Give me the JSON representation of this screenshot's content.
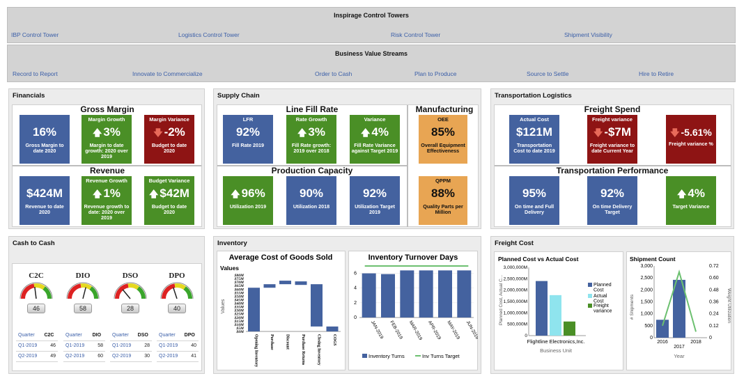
{
  "top": {
    "title": "Inspirage Control Towers",
    "links": [
      "IBP Control Tower",
      "Logistics Control Tower",
      "Risk Control Tower",
      "Shipment Visibility"
    ]
  },
  "streams": {
    "title": "Business Value Streams",
    "links": [
      "Record to Report",
      "Innovate to Commercialize",
      "Order to Cash",
      "Plan to Produce",
      "Source to Settle",
      "Hire to Retire"
    ]
  },
  "financials": {
    "title": "Financials",
    "gross_margin": {
      "title": "Gross Margin",
      "tiles": [
        {
          "header": "",
          "value": "16%",
          "caption": "Gross Margin to date 2020",
          "color": "#44629f",
          "arrow": ""
        },
        {
          "header": "Margin Growth",
          "value": "3%",
          "caption": "Margin to date growth: 2020 over 2019",
          "color": "#4a8f26",
          "arrow": "up"
        },
        {
          "header": "Margin Variance",
          "value": "-2%",
          "caption": "Budget to date 2020",
          "color": "#8e1414",
          "arrow": "down"
        }
      ]
    },
    "revenue": {
      "title": "Revenue",
      "tiles": [
        {
          "header": "",
          "value": "$424M",
          "caption": "Revenue to date 2020",
          "color": "#44629f",
          "arrow": ""
        },
        {
          "header": "Revenue Growth",
          "value": "1%",
          "caption": "Revenue growth to date: 2020 over 2019",
          "color": "#4a8f26",
          "arrow": "up"
        },
        {
          "header": "Budget Variance",
          "value": "$42M",
          "caption": "Budget to date 2020",
          "color": "#4a8f26",
          "arrow": "up"
        }
      ]
    }
  },
  "supply_chain": {
    "title": "Supply Chain",
    "line_fill": {
      "title": "Line Fill Rate",
      "tiles": [
        {
          "header": "LFR",
          "value": "92%",
          "caption": "Fill Rate 2019",
          "color": "#44629f",
          "arrow": ""
        },
        {
          "header": "Rate Growth",
          "value": "3%",
          "caption": "Fill Rate growth: 2019 over 2018",
          "color": "#4a8f26",
          "arrow": "up"
        },
        {
          "header": "Variance",
          "value": "4%",
          "caption": "Fill Rate Variance against Target 2019",
          "color": "#4a8f26",
          "arrow": "up"
        }
      ]
    },
    "manufacturing": {
      "title": "Manufacturing",
      "tiles": [
        {
          "header": "OEE",
          "value": "85%",
          "caption": "Overall Equipment Effectiveness",
          "color": "#e8a553",
          "arrow": ""
        },
        {
          "header": "QPPM",
          "value": "88%",
          "caption": "Quality Parts per Million",
          "color": "#e8a553",
          "arrow": ""
        }
      ]
    },
    "production": {
      "title": "Production Capacity",
      "tiles": [
        {
          "header": "",
          "value": "96%",
          "caption": "Utilization 2019",
          "color": "#4a8f26",
          "arrow": "up"
        },
        {
          "header": "",
          "value": "90%",
          "caption": "Utilization 2018",
          "color": "#44629f",
          "arrow": ""
        },
        {
          "header": "",
          "value": "92%",
          "caption": "Utilization Target 2019",
          "color": "#44629f",
          "arrow": ""
        }
      ]
    }
  },
  "transport": {
    "title": "Transportation Logistics",
    "freight_spend": {
      "title": "Freight Spend",
      "tiles": [
        {
          "header": "Actual Cost",
          "value": "$121M",
          "caption": "Transportation Cost to date 2019",
          "color": "#44629f",
          "arrow": ""
        },
        {
          "header": "Freight variance",
          "value": "-$7M",
          "caption": "Freight variance to date Current Year",
          "color": "#8e1414",
          "arrow": "down"
        },
        {
          "header": "",
          "value": "-5.61%",
          "caption": "Freight variance %",
          "color": "#8e1414",
          "arrow": "down"
        }
      ]
    },
    "performance": {
      "title": "Transportation Performance",
      "tiles": [
        {
          "header": "",
          "value": "95%",
          "caption": "On time and Full Delivery",
          "color": "#44629f",
          "arrow": ""
        },
        {
          "header": "",
          "value": "92%",
          "caption": "On time Delivery Target",
          "color": "#44629f",
          "arrow": ""
        },
        {
          "header": "",
          "value": "4%",
          "caption": "Target Variance",
          "color": "#4a8f26",
          "arrow": "up"
        }
      ]
    }
  },
  "cash": {
    "title": "Cash to Cash",
    "gauges": [
      {
        "name": "C2C",
        "value": "46",
        "pct": 0.46
      },
      {
        "name": "DIO",
        "value": "58",
        "pct": 0.58
      },
      {
        "name": "DSO",
        "value": "28",
        "pct": 0.28
      },
      {
        "name": "DPO",
        "value": "40",
        "pct": 0.4
      }
    ],
    "tables": [
      {
        "h1": "Quarter",
        "h2": "C2C",
        "rows": [
          [
            "Q1-2019",
            "46"
          ],
          [
            "Q2-2019",
            "49"
          ]
        ]
      },
      {
        "h1": "Quarter",
        "h2": "DIO",
        "rows": [
          [
            "Q1-2019",
            "58"
          ],
          [
            "Q2-2019",
            "60"
          ]
        ]
      },
      {
        "h1": "Quarter",
        "h2": "DSO",
        "rows": [
          [
            "Q1-2019",
            "28"
          ],
          [
            "Q2-2019",
            "30"
          ]
        ]
      },
      {
        "h1": "Quarter",
        "h2": "DPO",
        "rows": [
          [
            "Q1-2019",
            "40"
          ],
          [
            "Q2-2019",
            "41"
          ]
        ]
      }
    ]
  },
  "inventory": {
    "title": "Inventory"
  },
  "freight": {
    "title": "Freight Cost"
  },
  "chart_data": [
    {
      "type": "bar",
      "title": "Average Cost of Goods Sold",
      "legend_title": "Values",
      "ylabel": "Values",
      "ylim": [
        0,
        80
      ],
      "yticks": [
        "$0M",
        "$5M",
        "$10M",
        "$15M",
        "$20M",
        "$25M",
        "$30M",
        "$35M",
        "$40M",
        "$45M",
        "$50M",
        "$55M",
        "$60M",
        "$65M",
        "$70M",
        "$75M",
        "$80M"
      ],
      "categories": [
        "Opening Inventory",
        "Purchase",
        "Discount",
        "Purchase Returns",
        "Closing Inventory",
        "COGS"
      ],
      "waterfall_ranges": [
        [
          0,
          62
        ],
        [
          62,
          67
        ],
        [
          67,
          72
        ],
        [
          66,
          71
        ],
        [
          7,
          67
        ],
        [
          0,
          7
        ]
      ]
    },
    {
      "type": "bar",
      "title": "Inventory Turnover Days",
      "ylim": [
        0,
        7
      ],
      "yticks": [
        "0",
        "2",
        "4",
        "6"
      ],
      "categories": [
        "JAN-2019",
        "FEB-2019",
        "MAR-2019",
        "APR-2019",
        "MAY-2019",
        "JUN-2019"
      ],
      "series": [
        {
          "name": "Inventory Turns",
          "values": [
            6.0,
            5.9,
            6.4,
            6.4,
            6.4,
            6.4
          ]
        },
        {
          "name": "Inv Turns Target",
          "values": [
            7.0,
            7.0,
            7.0,
            7.0,
            7.0,
            7.0
          ]
        }
      ]
    },
    {
      "type": "bar",
      "title": "Planned Cost vs Actual Cost",
      "ylabel": "Planned Cost, Actual C...",
      "xlabel": "Business Unit",
      "ylim": [
        0,
        3000000
      ],
      "yticks": [
        "0",
        "500,000M",
        "1,000,000M",
        "1,500,000M",
        "2,000,000M",
        "2,500,000M",
        "3,000,000M"
      ],
      "categories": [
        "Flightline Electronics,Inc."
      ],
      "series": [
        {
          "name": "Planned Cost",
          "values": [
            2400000
          ]
        },
        {
          "name": "Actual Cost",
          "values": [
            1780000
          ]
        },
        {
          "name": "Freight variance",
          "values": [
            620000
          ]
        }
      ]
    },
    {
      "type": "bar",
      "title": "Shipment Count",
      "ylabel": "# Shipments",
      "y2label": "Weight Utilization",
      "xlabel": "Year",
      "ylim": [
        0,
        3000
      ],
      "y2lim": [
        0,
        0.72
      ],
      "yticks": [
        "0",
        "500",
        "1,000",
        "1,500",
        "2,000",
        "2,500",
        "3,000"
      ],
      "y2ticks": [
        "0",
        "0.12",
        "0.24",
        "0.36",
        "0.48",
        "0.60",
        "0.72"
      ],
      "categories": [
        "2016",
        "2017",
        "2018"
      ],
      "series": [
        {
          "name": "# Shipments",
          "values": [
            750,
            2420,
            0
          ]
        },
        {
          "name": "Weight Utilization",
          "values": [
            0.12,
            0.66,
            0.06
          ]
        }
      ]
    }
  ]
}
